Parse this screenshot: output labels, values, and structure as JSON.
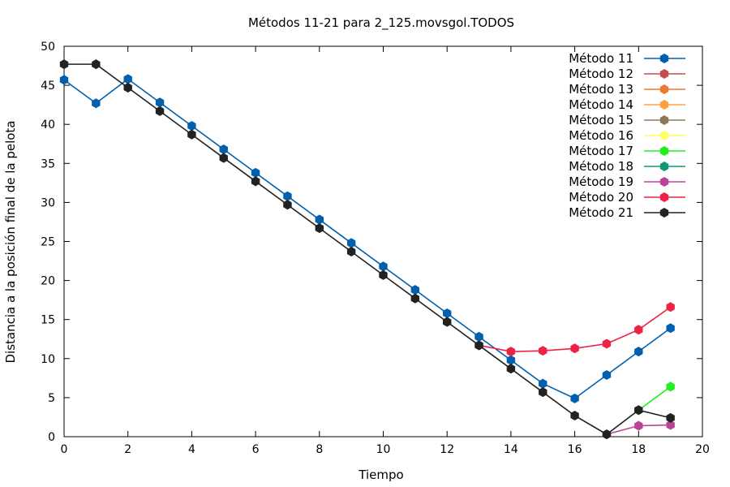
{
  "chart_data": {
    "type": "line",
    "title": "Métodos 11-21 para 2_125.movsgol.TODOS",
    "xlabel": "Tiempo",
    "ylabel": "Distancia a la posición final de la pelota",
    "xlim": [
      0,
      20
    ],
    "ylim": [
      0,
      50
    ],
    "xticks": [
      "0",
      "2",
      "4",
      "6",
      "8",
      "10",
      "12",
      "14",
      "16",
      "18",
      "20"
    ],
    "yticks": [
      "0",
      "5",
      "10",
      "15",
      "20",
      "25",
      "30",
      "35",
      "40",
      "45",
      "50"
    ],
    "grid": false,
    "legend_position": "top-right",
    "series": [
      {
        "name": "Método 11",
        "color": "#0060ad",
        "x": [
          0,
          1,
          2,
          3,
          4,
          5,
          6,
          7,
          8,
          9,
          10,
          11,
          12,
          13,
          14,
          15,
          16,
          17,
          18,
          19
        ],
        "y": [
          45.7,
          42.7,
          45.8,
          42.8,
          39.8,
          36.8,
          33.8,
          30.8,
          27.8,
          24.8,
          21.8,
          18.8,
          15.8,
          12.8,
          9.8,
          6.8,
          4.9,
          7.9,
          10.9,
          13.9
        ]
      },
      {
        "name": "Método 12",
        "color": "#c0504d",
        "x": [],
        "y": []
      },
      {
        "name": "Método 13",
        "color": "#ee7733",
        "x": [],
        "y": []
      },
      {
        "name": "Método 14",
        "color": "#ffa040",
        "x": [],
        "y": []
      },
      {
        "name": "Método 15",
        "color": "#8b7b5b",
        "x": [],
        "y": []
      },
      {
        "name": "Método 16",
        "color": "#ffff66",
        "x": [],
        "y": []
      },
      {
        "name": "Método 17",
        "color": "#22ee22",
        "x": [
          18,
          19
        ],
        "y": [
          3.4,
          6.4
        ]
      },
      {
        "name": "Método 18",
        "color": "#119977",
        "x": [],
        "y": []
      },
      {
        "name": "Método 19",
        "color": "#bb4499",
        "x": [
          17,
          18,
          19
        ],
        "y": [
          0.3,
          1.4,
          1.5
        ]
      },
      {
        "name": "Método 20",
        "color": "#ee2244",
        "x": [
          13,
          14,
          15,
          16,
          17,
          18,
          19
        ],
        "y": [
          11.7,
          10.9,
          11.0,
          11.3,
          11.9,
          13.7,
          16.6
        ]
      },
      {
        "name": "Método 21",
        "color": "#222222",
        "x": [
          0,
          1,
          2,
          3,
          4,
          5,
          6,
          7,
          8,
          9,
          10,
          11,
          12,
          13,
          14,
          15,
          16,
          17,
          18,
          19
        ],
        "y": [
          47.7,
          47.7,
          44.7,
          41.7,
          38.7,
          35.7,
          32.7,
          29.7,
          26.7,
          23.7,
          20.7,
          17.7,
          14.7,
          11.7,
          8.7,
          5.7,
          2.7,
          0.3,
          3.4,
          2.4
        ]
      }
    ]
  }
}
